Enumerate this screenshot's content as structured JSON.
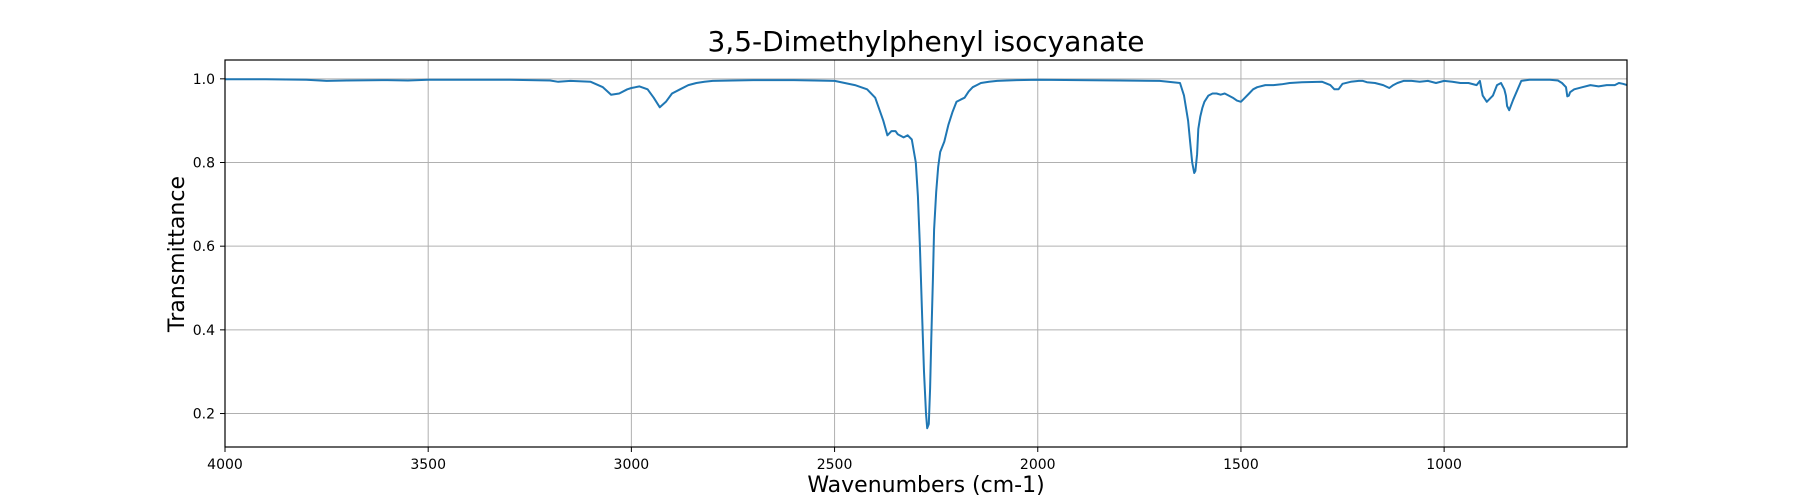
{
  "chart_data": {
    "type": "line",
    "title": "3,5-Dimethylphenyl isocyanate",
    "xlabel": "Wavenumbers (cm-1)",
    "ylabel": "Transmittance",
    "xlim": [
      4000,
      550
    ],
    "ylim": [
      0.12,
      1.045
    ],
    "x_reversed": true,
    "grid": true,
    "x_ticks": [
      4000,
      3500,
      3000,
      2500,
      2000,
      1500,
      1000
    ],
    "x_tick_labels": [
      "4000",
      "3500",
      "3000",
      "2500",
      "2000",
      "1500",
      "1000"
    ],
    "y_ticks": [
      0.2,
      0.4,
      0.6,
      0.8,
      1.0
    ],
    "y_tick_labels": [
      "0.2",
      "0.4",
      "0.6",
      "0.8",
      "1.0"
    ],
    "series": [
      {
        "color": "#1f77b4",
        "x": [
          4000,
          3900,
          3800,
          3750,
          3700,
          3600,
          3550,
          3500,
          3400,
          3300,
          3200,
          3180,
          3150,
          3100,
          3070,
          3050,
          3030,
          3010,
          3000,
          2980,
          2960,
          2945,
          2930,
          2915,
          2900,
          2880,
          2860,
          2840,
          2820,
          2800,
          2700,
          2600,
          2500,
          2450,
          2420,
          2400,
          2380,
          2370,
          2360,
          2350,
          2345,
          2340,
          2330,
          2320,
          2310,
          2300,
          2295,
          2290,
          2285,
          2280,
          2275,
          2272,
          2268,
          2265,
          2262,
          2258,
          2255,
          2250,
          2245,
          2240,
          2230,
          2220,
          2210,
          2200,
          2190,
          2180,
          2170,
          2160,
          2150,
          2140,
          2120,
          2100,
          2050,
          2000,
          1900,
          1800,
          1700,
          1650,
          1640,
          1630,
          1625,
          1620,
          1615,
          1612,
          1608,
          1605,
          1600,
          1595,
          1590,
          1580,
          1570,
          1560,
          1550,
          1540,
          1530,
          1520,
          1510,
          1500,
          1490,
          1480,
          1470,
          1460,
          1440,
          1420,
          1400,
          1380,
          1350,
          1300,
          1280,
          1270,
          1260,
          1250,
          1230,
          1210,
          1200,
          1190,
          1170,
          1150,
          1135,
          1125,
          1115,
          1100,
          1080,
          1060,
          1040,
          1020,
          1000,
          980,
          960,
          940,
          920,
          912,
          905,
          895,
          880,
          870,
          860,
          852,
          848,
          845,
          840,
          830,
          810,
          790,
          760,
          740,
          720,
          710,
          700,
          697,
          693,
          690,
          680,
          660,
          640,
          620,
          600,
          580,
          570,
          560,
          550
        ],
        "y": [
          0.999,
          0.999,
          0.998,
          0.995,
          0.996,
          0.997,
          0.996,
          0.998,
          0.998,
          0.998,
          0.996,
          0.993,
          0.995,
          0.993,
          0.98,
          0.962,
          0.965,
          0.975,
          0.978,
          0.982,
          0.975,
          0.955,
          0.932,
          0.945,
          0.965,
          0.975,
          0.985,
          0.99,
          0.993,
          0.995,
          0.997,
          0.997,
          0.995,
          0.985,
          0.975,
          0.955,
          0.9,
          0.865,
          0.875,
          0.875,
          0.868,
          0.865,
          0.86,
          0.865,
          0.855,
          0.8,
          0.72,
          0.6,
          0.45,
          0.3,
          0.2,
          0.165,
          0.175,
          0.26,
          0.38,
          0.52,
          0.64,
          0.73,
          0.79,
          0.825,
          0.85,
          0.89,
          0.92,
          0.945,
          0.95,
          0.955,
          0.97,
          0.98,
          0.985,
          0.99,
          0.993,
          0.995,
          0.997,
          0.998,
          0.997,
          0.996,
          0.995,
          0.99,
          0.96,
          0.9,
          0.85,
          0.8,
          0.775,
          0.78,
          0.82,
          0.88,
          0.91,
          0.93,
          0.945,
          0.96,
          0.965,
          0.965,
          0.962,
          0.965,
          0.96,
          0.955,
          0.948,
          0.945,
          0.955,
          0.965,
          0.975,
          0.98,
          0.985,
          0.985,
          0.987,
          0.99,
          0.992,
          0.993,
          0.985,
          0.975,
          0.975,
          0.988,
          0.993,
          0.995,
          0.995,
          0.992,
          0.99,
          0.985,
          0.978,
          0.985,
          0.99,
          0.995,
          0.995,
          0.993,
          0.995,
          0.99,
          0.995,
          0.993,
          0.99,
          0.99,
          0.985,
          0.995,
          0.96,
          0.945,
          0.96,
          0.985,
          0.99,
          0.975,
          0.96,
          0.935,
          0.925,
          0.95,
          0.995,
          0.998,
          0.998,
          0.998,
          0.996,
          0.99,
          0.98,
          0.958,
          0.96,
          0.968,
          0.975,
          0.98,
          0.985,
          0.982,
          0.985,
          0.985,
          0.99,
          0.988,
          0.985
        ]
      }
    ]
  }
}
